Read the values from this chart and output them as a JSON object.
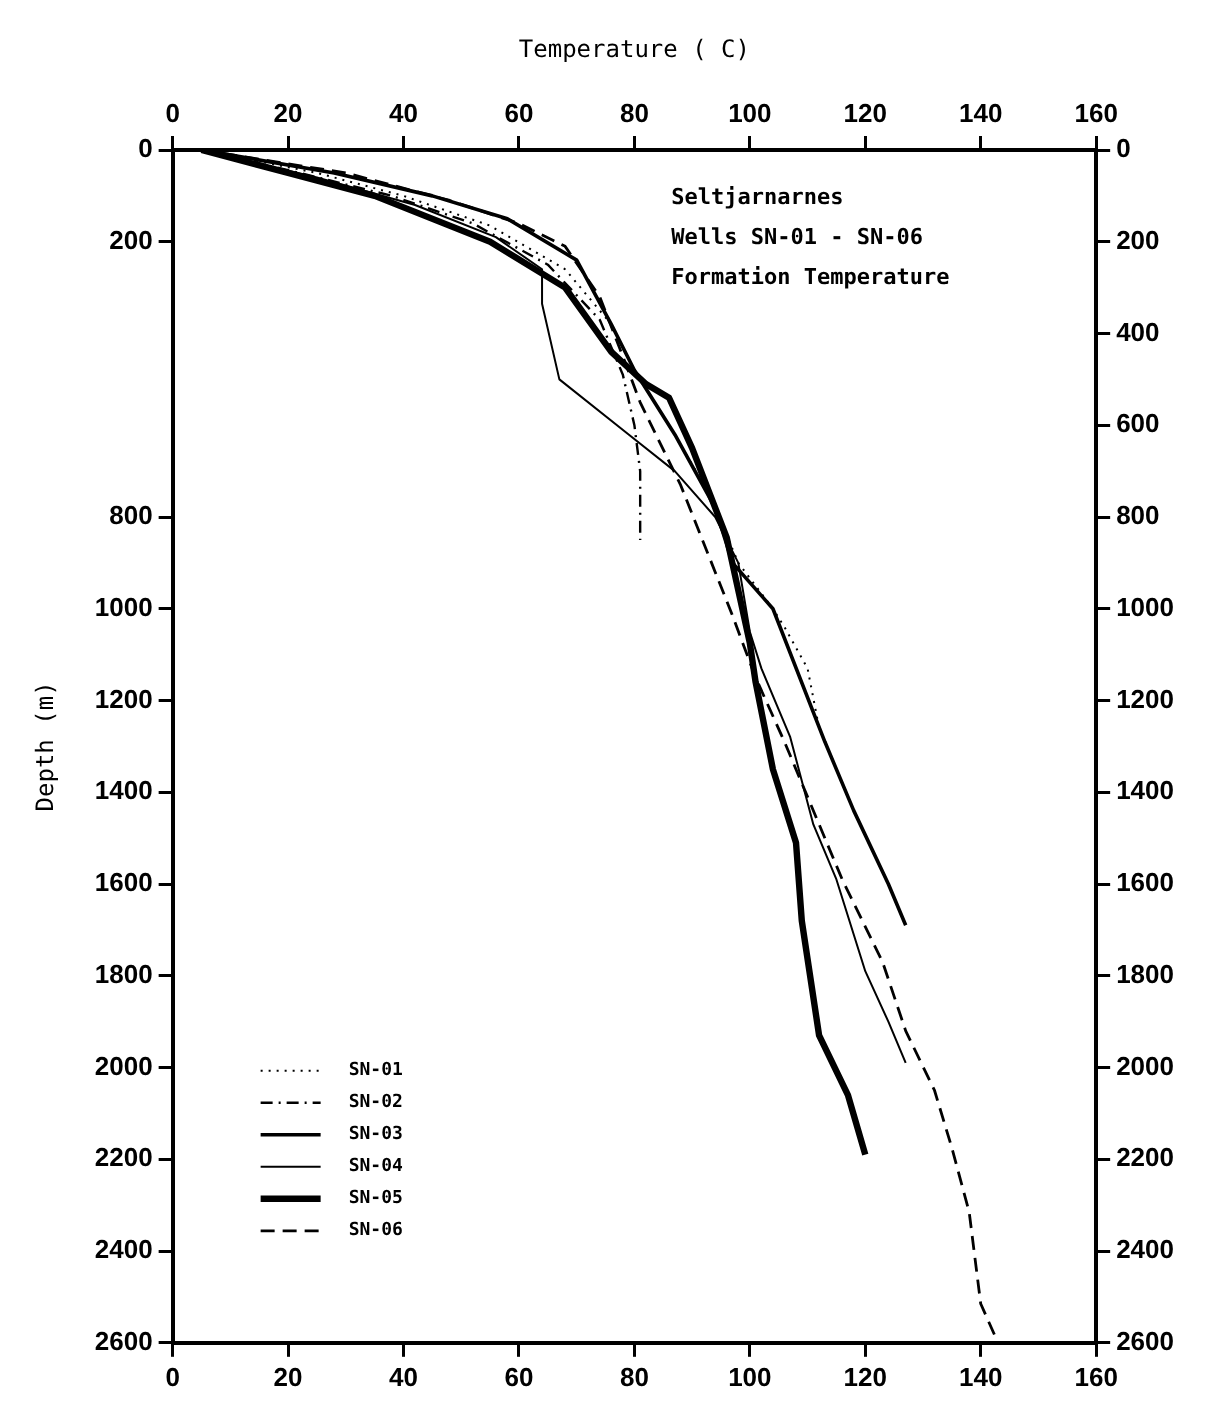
{
  "chart_data": {
    "type": "line",
    "x2label": "Temperature ( C)",
    "ylabel": "Depth (m)",
    "annotations": [
      "Seltjarnarnes",
      "Wells SN-01 - SN-06",
      "Formation Temperature"
    ],
    "xlim": [
      0,
      160
    ],
    "xticks": [
      0,
      20,
      40,
      60,
      80,
      100,
      120,
      140,
      160
    ],
    "x2lim": [
      0,
      160
    ],
    "x2ticks": [
      0,
      20,
      40,
      60,
      80,
      100,
      120,
      140,
      160
    ],
    "ylim": [
      2600,
      0
    ],
    "yticks": [
      0,
      200,
      800,
      1000,
      1200,
      1400,
      1600,
      1800,
      2000,
      2200,
      2400,
      2600
    ],
    "y2lim": [
      2600,
      0
    ],
    "y2ticks": [
      0,
      200,
      400,
      600,
      800,
      1000,
      1200,
      1400,
      1600,
      1800,
      2000,
      2200,
      2400,
      2600
    ],
    "grid": false,
    "legend": "bottom left",
    "marker": "none",
    "series": [
      {
        "name": "SN-01",
        "color": "#000000",
        "line_style": "dotted",
        "x": [
          5,
          25,
          40,
          55,
          68,
          76,
          80,
          86,
          93,
          98,
          104,
          106,
          110,
          112,
          113
        ],
        "values": [
          0,
          50,
          100,
          165,
          260,
          380,
          480,
          600,
          750,
          900,
          1000,
          1040,
          1130,
          1260,
          1290
        ]
      },
      {
        "name": "SN-02",
        "color": "#000000",
        "line_style": "dashdot",
        "x": [
          5,
          22,
          38,
          52,
          65,
          74,
          78,
          80,
          81,
          81
        ],
        "values": [
          0,
          50,
          100,
          160,
          250,
          370,
          490,
          600,
          700,
          850
        ]
      },
      {
        "name": "SN-03",
        "color": "#000000",
        "line_style": "solid",
        "x": [
          5,
          28,
          45,
          58,
          70,
          76,
          80,
          87,
          94,
          97,
          104,
          113,
          118,
          124,
          127
        ],
        "values": [
          0,
          50,
          100,
          150,
          240,
          380,
          480,
          620,
          780,
          900,
          1000,
          1290,
          1440,
          1600,
          1690
        ]
      },
      {
        "name": "SN-04",
        "color": "#000000",
        "line_style": "solid",
        "x": [
          5,
          25,
          42,
          56,
          64,
          64,
          67,
          79,
          87,
          94,
          98,
          100,
          102,
          107,
          111,
          115,
          120,
          124,
          127
        ],
        "values": [
          0,
          60,
          120,
          190,
          260,
          335,
          500,
          620,
          700,
          800,
          900,
          1050,
          1130,
          1280,
          1470,
          1590,
          1790,
          1900,
          1990
        ]
      },
      {
        "name": "SN-05",
        "color": "#000000",
        "line_style": "solid",
        "x": [
          5,
          20,
          35,
          55,
          68,
          76,
          82,
          86,
          90,
          96,
          100,
          101,
          104,
          108,
          109,
          112,
          117,
          120
        ],
        "values": [
          0,
          50,
          100,
          200,
          300,
          440,
          510,
          540,
          650,
          845,
          1075,
          1160,
          1350,
          1510,
          1680,
          1930,
          2060,
          2190
        ]
      },
      {
        "name": "SN-06",
        "color": "#000000",
        "line_style": "dashed",
        "x": [
          5,
          30,
          48,
          60,
          68,
          74,
          78,
          81,
          88,
          97,
          101,
          106,
          116,
          123,
          127,
          132,
          135,
          138,
          140,
          143
        ],
        "values": [
          0,
          50,
          110,
          160,
          210,
          320,
          450,
          550,
          730,
          1015,
          1150,
          1290,
          1590,
          1770,
          1920,
          2050,
          2175,
          2315,
          2515,
          2600
        ]
      }
    ]
  }
}
